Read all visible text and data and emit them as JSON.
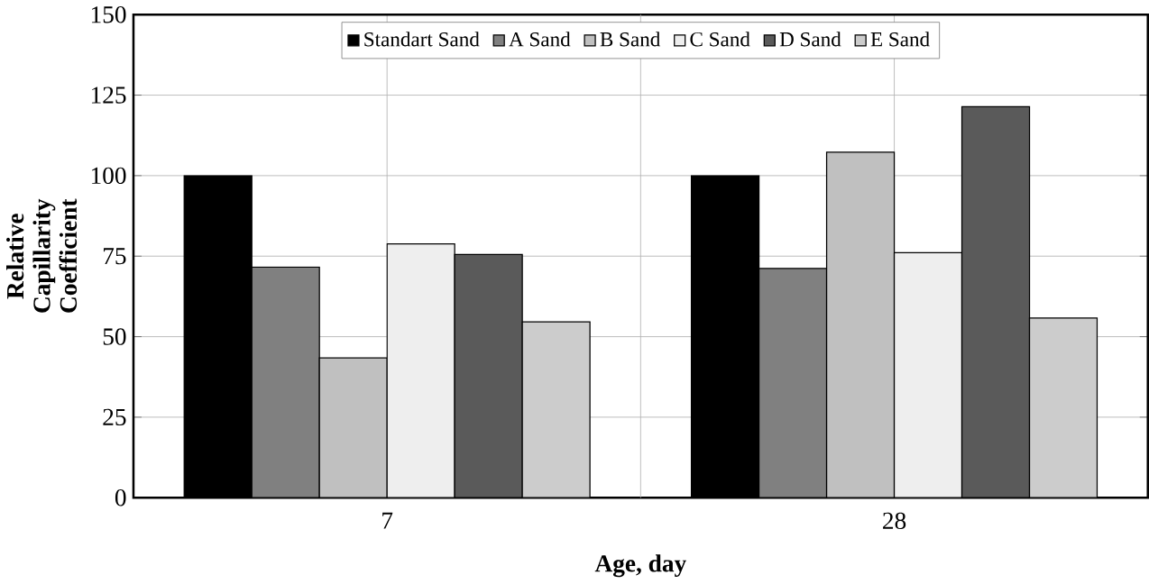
{
  "chart_data": {
    "type": "bar",
    "xlabel": "Age, day",
    "ylabel": "Relative Capillarity Coefficient",
    "categories": [
      "7",
      "28"
    ],
    "series": [
      {
        "name": "Standart Sand",
        "color": "#000000",
        "values": [
          100,
          100
        ]
      },
      {
        "name": "A Sand",
        "color": "#808080",
        "values": [
          71.6,
          71.2
        ]
      },
      {
        "name": "B Sand",
        "color": "#c0c0c0",
        "values": [
          43.4,
          107.3
        ]
      },
      {
        "name": "C Sand",
        "color": "#eeeeee",
        "values": [
          78.8,
          76.1
        ]
      },
      {
        "name": "D Sand",
        "color": "#5a5a5a",
        "values": [
          75.5,
          121.4
        ]
      },
      {
        "name": "E Sand",
        "color": "#cccccc",
        "values": [
          54.6,
          55.8
        ]
      }
    ],
    "ylim": [
      0,
      150
    ],
    "yticks": [
      0,
      25,
      50,
      75,
      100,
      125,
      150
    ],
    "grid": true,
    "legend": "top"
  }
}
